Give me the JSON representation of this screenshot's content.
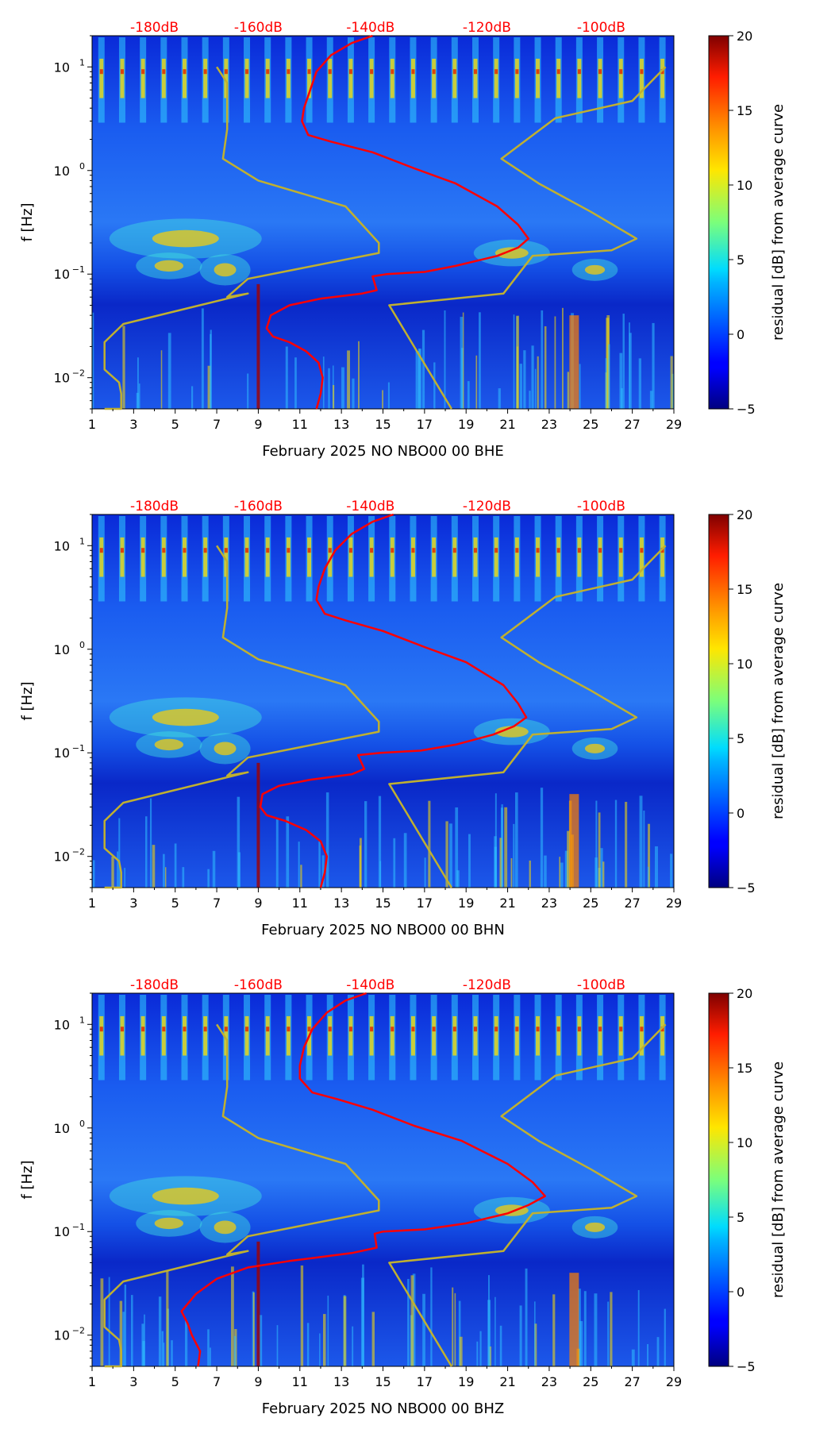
{
  "chart_data": [
    {
      "type": "heatmap",
      "title": "",
      "xlabel": "February 2025 NO NBO00 00 BHE",
      "ylabel": "f [Hz]",
      "x_range": [
        1,
        29
      ],
      "y_range": [
        0.005,
        20
      ],
      "y_scale": "log",
      "x_ticks": [
        "1",
        "3",
        "5",
        "7",
        "9",
        "11",
        "13",
        "15",
        "17",
        "19",
        "21",
        "23",
        "25",
        "27",
        "29"
      ],
      "y_ticks": [
        {
          "label": "10",
          "exp": "1",
          "value": 10
        },
        {
          "label": "10",
          "exp": "0",
          "value": 1
        },
        {
          "label": "10",
          "exp": "−1",
          "value": 0.1
        },
        {
          "label": "10",
          "exp": "−2",
          "value": 0.01
        }
      ],
      "top_axis_labels": [
        "-180dB",
        "-160dB",
        "-140dB",
        "-120dB",
        "-100dB"
      ],
      "colorbar": {
        "label": "residual [dB] from average curve",
        "min": -5,
        "max": 20,
        "ticks": [
          "20",
          "15",
          "10",
          "5",
          "0",
          "−5"
        ]
      },
      "series": [
        {
          "name": "average curve",
          "color": "#ff0000",
          "points": [
            [
              14.5,
              20
            ],
            [
              13.5,
              17
            ],
            [
              12.5,
              13
            ],
            [
              11.8,
              9
            ],
            [
              11.5,
              6
            ],
            [
              11.2,
              4
            ],
            [
              11.1,
              3
            ],
            [
              11.4,
              2.2
            ],
            [
              12.5,
              1.9
            ],
            [
              14.5,
              1.5
            ],
            [
              16.5,
              1.05
            ],
            [
              18.5,
              0.75
            ],
            [
              20.5,
              0.45
            ],
            [
              21.5,
              0.3
            ],
            [
              22,
              0.22
            ],
            [
              21.5,
              0.18
            ],
            [
              20.5,
              0.15
            ],
            [
              18.5,
              0.12
            ],
            [
              17,
              0.105
            ],
            [
              15.2,
              0.1
            ],
            [
              14.5,
              0.095
            ],
            [
              14.7,
              0.07
            ],
            [
              14,
              0.065
            ],
            [
              12,
              0.058
            ],
            [
              10.5,
              0.05
            ],
            [
              9.6,
              0.04
            ],
            [
              9.4,
              0.03
            ],
            [
              9.7,
              0.025
            ],
            [
              10.5,
              0.022
            ],
            [
              11.3,
              0.018
            ],
            [
              11.9,
              0.014
            ],
            [
              12.1,
              0.01
            ],
            [
              12,
              0.007
            ],
            [
              11.8,
              0.005
            ]
          ]
        },
        {
          "name": "low noise model",
          "color": "#c0b030",
          "points": [
            [
              1.6,
              0.005
            ],
            [
              2.4,
              0.005
            ],
            [
              2.4,
              0.007
            ],
            [
              2.3,
              0.009
            ],
            [
              1.6,
              0.012
            ],
            [
              1.6,
              0.022
            ],
            [
              2.5,
              0.033
            ],
            [
              8.5,
              0.065
            ],
            [
              7.5,
              0.06
            ],
            [
              8.5,
              0.09
            ],
            [
              14.8,
              0.16
            ],
            [
              14.8,
              0.2
            ],
            [
              13.2,
              0.45
            ],
            [
              9,
              0.8
            ],
            [
              7.3,
              1.3
            ],
            [
              7.5,
              2.5
            ],
            [
              7.5,
              7
            ],
            [
              7,
              10
            ]
          ]
        },
        {
          "name": "high noise model",
          "color": "#c0b030",
          "points": [
            [
              18.3,
              0.005
            ],
            [
              15.3,
              0.05
            ],
            [
              20.8,
              0.065
            ],
            [
              22.2,
              0.15
            ],
            [
              26,
              0.17
            ],
            [
              27.2,
              0.22
            ],
            [
              25,
              0.4
            ],
            [
              22.5,
              0.75
            ],
            [
              20.7,
              1.3
            ],
            [
              23.3,
              3.2
            ],
            [
              27,
              4.7
            ],
            [
              28.6,
              10
            ]
          ]
        }
      ]
    },
    {
      "type": "heatmap",
      "title": "",
      "xlabel": "February 2025 NO NBO00 00 BHN",
      "ylabel": "f [Hz]",
      "x_range": [
        1,
        29
      ],
      "y_range": [
        0.005,
        20
      ],
      "y_scale": "log",
      "x_ticks": [
        "1",
        "3",
        "5",
        "7",
        "9",
        "11",
        "13",
        "15",
        "17",
        "19",
        "21",
        "23",
        "25",
        "27",
        "29"
      ],
      "y_ticks": [
        {
          "label": "10",
          "exp": "1",
          "value": 10
        },
        {
          "label": "10",
          "exp": "0",
          "value": 1
        },
        {
          "label": "10",
          "exp": "−1",
          "value": 0.1
        },
        {
          "label": "10",
          "exp": "−2",
          "value": 0.01
        }
      ],
      "top_axis_labels": [
        "-180dB",
        "-160dB",
        "-140dB",
        "-120dB",
        "-100dB"
      ],
      "colorbar": {
        "label": "residual [dB] from average curve",
        "min": -5,
        "max": 20,
        "ticks": [
          "20",
          "15",
          "10",
          "5",
          "0",
          "−5"
        ]
      },
      "series": [
        {
          "name": "average curve",
          "color": "#ff0000",
          "points": [
            [
              15.5,
              20
            ],
            [
              14.5,
              17
            ],
            [
              13.5,
              13
            ],
            [
              12.7,
              9
            ],
            [
              12.2,
              6
            ],
            [
              11.9,
              4
            ],
            [
              11.8,
              3
            ],
            [
              12.2,
              2.2
            ],
            [
              13.2,
              1.9
            ],
            [
              15,
              1.5
            ],
            [
              17,
              1.05
            ],
            [
              19,
              0.75
            ],
            [
              20.8,
              0.45
            ],
            [
              21.5,
              0.3
            ],
            [
              21.9,
              0.22
            ],
            [
              21.3,
              0.18
            ],
            [
              20.3,
              0.15
            ],
            [
              18.5,
              0.12
            ],
            [
              16.8,
              0.105
            ],
            [
              14.9,
              0.1
            ],
            [
              13.8,
              0.095
            ],
            [
              14.1,
              0.07
            ],
            [
              13.5,
              0.062
            ],
            [
              11.5,
              0.055
            ],
            [
              10,
              0.048
            ],
            [
              9.2,
              0.04
            ],
            [
              9.1,
              0.03
            ],
            [
              9.4,
              0.025
            ],
            [
              10.3,
              0.022
            ],
            [
              11.3,
              0.018
            ],
            [
              12,
              0.014
            ],
            [
              12.3,
              0.01
            ],
            [
              12.2,
              0.007
            ],
            [
              12,
              0.005
            ]
          ]
        },
        {
          "name": "low noise model",
          "color": "#c0b030",
          "points": [
            [
              1.6,
              0.005
            ],
            [
              2.4,
              0.005
            ],
            [
              2.4,
              0.007
            ],
            [
              2.3,
              0.009
            ],
            [
              1.6,
              0.012
            ],
            [
              1.6,
              0.022
            ],
            [
              2.5,
              0.033
            ],
            [
              8.5,
              0.065
            ],
            [
              7.5,
              0.06
            ],
            [
              8.5,
              0.09
            ],
            [
              14.8,
              0.16
            ],
            [
              14.8,
              0.2
            ],
            [
              13.2,
              0.45
            ],
            [
              9,
              0.8
            ],
            [
              7.3,
              1.3
            ],
            [
              7.5,
              2.5
            ],
            [
              7.5,
              7
            ],
            [
              7,
              10
            ]
          ]
        },
        {
          "name": "high noise model",
          "color": "#c0b030",
          "points": [
            [
              18.3,
              0.005
            ],
            [
              15.3,
              0.05
            ],
            [
              20.8,
              0.065
            ],
            [
              22.2,
              0.15
            ],
            [
              26,
              0.17
            ],
            [
              27.2,
              0.22
            ],
            [
              25,
              0.4
            ],
            [
              22.5,
              0.75
            ],
            [
              20.7,
              1.3
            ],
            [
              23.3,
              3.2
            ],
            [
              27,
              4.7
            ],
            [
              28.6,
              10
            ]
          ]
        }
      ]
    },
    {
      "type": "heatmap",
      "title": "",
      "xlabel": "February 2025 NO NBO00 00 BHZ",
      "ylabel": "f [Hz]",
      "x_range": [
        1,
        29
      ],
      "y_range": [
        0.005,
        20
      ],
      "y_scale": "log",
      "x_ticks": [
        "1",
        "3",
        "5",
        "7",
        "9",
        "11",
        "13",
        "15",
        "17",
        "19",
        "21",
        "23",
        "25",
        "27",
        "29"
      ],
      "y_ticks": [
        {
          "label": "10",
          "exp": "1",
          "value": 10
        },
        {
          "label": "10",
          "exp": "0",
          "value": 1
        },
        {
          "label": "10",
          "exp": "−1",
          "value": 0.1
        },
        {
          "label": "10",
          "exp": "−2",
          "value": 0.01
        }
      ],
      "top_axis_labels": [
        "-180dB",
        "-160dB",
        "-140dB",
        "-120dB",
        "-100dB"
      ],
      "colorbar": {
        "label": "residual [dB] from average curve",
        "min": -5,
        "max": 20,
        "ticks": [
          "20",
          "15",
          "10",
          "5",
          "0",
          "−5"
        ]
      },
      "series": [
        {
          "name": "average curve",
          "color": "#ff0000",
          "points": [
            [
              14.2,
              20
            ],
            [
              13.2,
              17
            ],
            [
              12.3,
              13
            ],
            [
              11.6,
              9
            ],
            [
              11.2,
              6
            ],
            [
              11,
              4
            ],
            [
              11,
              3
            ],
            [
              11.6,
              2.2
            ],
            [
              12.8,
              1.9
            ],
            [
              14.5,
              1.5
            ],
            [
              16.5,
              1.05
            ],
            [
              18.8,
              0.75
            ],
            [
              21,
              0.45
            ],
            [
              22.2,
              0.3
            ],
            [
              22.8,
              0.22
            ],
            [
              22,
              0.18
            ],
            [
              21,
              0.15
            ],
            [
              19,
              0.12
            ],
            [
              17,
              0.105
            ],
            [
              15,
              0.1
            ],
            [
              14.6,
              0.095
            ],
            [
              14.7,
              0.07
            ],
            [
              13.5,
              0.062
            ],
            [
              10.5,
              0.052
            ],
            [
              8.5,
              0.045
            ],
            [
              7,
              0.035
            ],
            [
              6,
              0.025
            ],
            [
              5.3,
              0.017
            ],
            [
              5.6,
              0.013
            ],
            [
              5.8,
              0.01
            ],
            [
              6.2,
              0.007
            ],
            [
              6.1,
              0.005
            ]
          ]
        },
        {
          "name": "low noise model",
          "color": "#c0b030",
          "points": [
            [
              1.6,
              0.005
            ],
            [
              2.4,
              0.005
            ],
            [
              2.4,
              0.007
            ],
            [
              2.3,
              0.009
            ],
            [
              1.6,
              0.012
            ],
            [
              1.6,
              0.022
            ],
            [
              2.5,
              0.033
            ],
            [
              8.5,
              0.065
            ],
            [
              7.5,
              0.06
            ],
            [
              8.5,
              0.09
            ],
            [
              14.8,
              0.16
            ],
            [
              14.8,
              0.2
            ],
            [
              13.2,
              0.45
            ],
            [
              9,
              0.8
            ],
            [
              7.3,
              1.3
            ],
            [
              7.5,
              2.5
            ],
            [
              7.5,
              7
            ],
            [
              7,
              10
            ]
          ]
        },
        {
          "name": "high noise model",
          "color": "#c0b030",
          "points": [
            [
              18.3,
              0.005
            ],
            [
              15.3,
              0.05
            ],
            [
              20.8,
              0.065
            ],
            [
              22.2,
              0.15
            ],
            [
              26,
              0.17
            ],
            [
              27.2,
              0.22
            ],
            [
              25,
              0.4
            ],
            [
              22.5,
              0.75
            ],
            [
              20.7,
              1.3
            ],
            [
              23.3,
              3.2
            ],
            [
              27,
              4.7
            ],
            [
              28.6,
              10
            ]
          ]
        }
      ]
    }
  ]
}
